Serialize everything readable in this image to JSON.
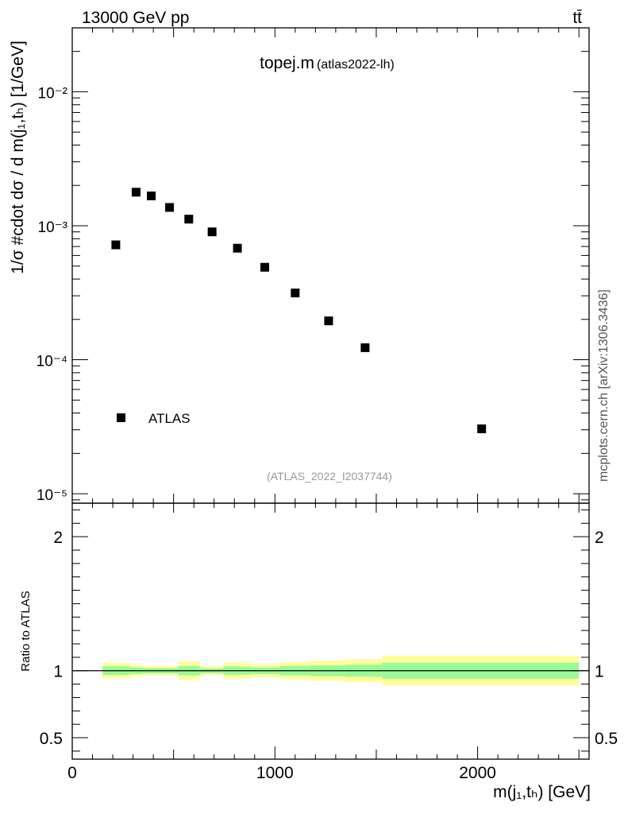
{
  "header": {
    "left": "13000 GeV pp",
    "right": "tt̄"
  },
  "side_label": "mcplots.cern.ch [arXiv:1306.3436]",
  "chart_data": [
    {
      "type": "scatter",
      "title": "topej.m",
      "subtitle": "(atlas2022-lh)",
      "watermark": "(ATLAS_2022_I2037744)",
      "xlabel": "m(j₁,tₕ) [GeV]",
      "ylabel": "1/σ #cdot dσ / d m(j₁,tₕ) [1/GeV]",
      "yscale": "log",
      "xlim": [
        0,
        2550
      ],
      "ylim": [
        8.5e-06,
        0.03
      ],
      "ytick_labels": [
        "10⁻⁵",
        "10⁻⁴",
        "10⁻³",
        "10⁻²"
      ],
      "ytick_values": [
        1e-05,
        0.0001,
        0.001,
        0.01
      ],
      "series": [
        {
          "name": "ATLAS",
          "x": [
            215,
            315,
            390,
            480,
            575,
            690,
            815,
            950,
            1100,
            1265,
            1445,
            2020
          ],
          "y": [
            0.00072,
            0.00178,
            0.00167,
            0.00137,
            0.00112,
            0.0009,
            0.00068,
            0.00049,
            0.000315,
            0.000195,
            0.000123,
            3.05e-05
          ]
        }
      ],
      "legend": {
        "label": "ATLAS",
        "position": "bottom-left"
      }
    },
    {
      "type": "area",
      "ylabel": "Ratio to ATLAS",
      "xlabel": "m(j₁,tₕ) [GeV]",
      "xlim": [
        0,
        2550
      ],
      "ylim": [
        0.34,
        2.25
      ],
      "xtick_values": [
        0,
        1000,
        2000
      ],
      "xtick_labels": [
        "0",
        "1000",
        "2000"
      ],
      "ytick_values": [
        0.5,
        1,
        2
      ],
      "ytick_labels": [
        "0.5",
        "1",
        "2"
      ],
      "reference_line": 1,
      "bins": [
        {
          "lo": 150,
          "hi": 285,
          "stat": [
            0.968,
            1.033
          ],
          "total": [
            0.942,
            1.058
          ]
        },
        {
          "lo": 285,
          "hi": 345,
          "stat": [
            0.975,
            1.025
          ],
          "total": [
            0.955,
            1.045
          ]
        },
        {
          "lo": 345,
          "hi": 430,
          "stat": [
            0.98,
            1.02
          ],
          "total": [
            0.965,
            1.035
          ]
        },
        {
          "lo": 430,
          "hi": 525,
          "stat": [
            0.98,
            1.02
          ],
          "total": [
            0.965,
            1.035
          ]
        },
        {
          "lo": 525,
          "hi": 630,
          "stat": [
            0.965,
            1.035
          ],
          "total": [
            0.93,
            1.07
          ]
        },
        {
          "lo": 630,
          "hi": 745,
          "stat": [
            0.982,
            1.018
          ],
          "total": [
            0.968,
            1.032
          ]
        },
        {
          "lo": 745,
          "hi": 880,
          "stat": [
            0.97,
            1.03
          ],
          "total": [
            0.94,
            1.06
          ]
        },
        {
          "lo": 880,
          "hi": 1025,
          "stat": [
            0.975,
            1.025
          ],
          "total": [
            0.952,
            1.048
          ]
        },
        {
          "lo": 1025,
          "hi": 1175,
          "stat": [
            0.965,
            1.035
          ],
          "total": [
            0.935,
            1.065
          ]
        },
        {
          "lo": 1175,
          "hi": 1345,
          "stat": [
            0.96,
            1.04
          ],
          "total": [
            0.925,
            1.075
          ]
        },
        {
          "lo": 1345,
          "hi": 1530,
          "stat": [
            0.955,
            1.045
          ],
          "total": [
            0.915,
            1.085
          ]
        },
        {
          "lo": 1530,
          "hi": 2500,
          "stat": [
            0.94,
            1.06
          ],
          "total": [
            0.89,
            1.11
          ]
        }
      ],
      "colors": {
        "stat": "#99fa98",
        "total": "#fffe99",
        "marker": "#000000"
      }
    }
  ]
}
